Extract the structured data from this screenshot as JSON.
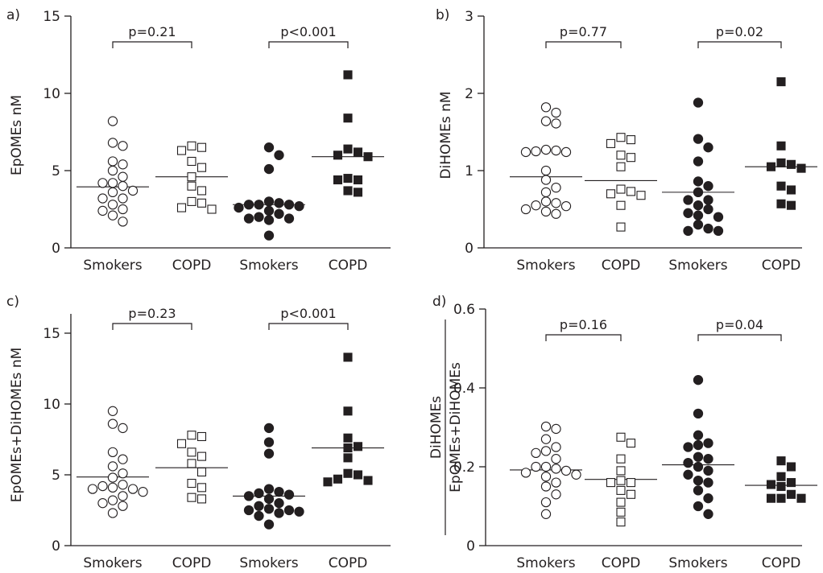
{
  "chart_data": [
    {
      "panel": "a)",
      "type": "scatter",
      "ylabel": "EpOMEs nM",
      "ylim": [
        0,
        15
      ],
      "yticks": [
        0,
        5,
        10,
        15
      ],
      "categories": [
        "Smokers",
        "COPD",
        "Smokers",
        "COPD"
      ],
      "comparisons": [
        {
          "groups": [
            0,
            1
          ],
          "label": "p=0.21"
        },
        {
          "groups": [
            2,
            3
          ],
          "label": "p<0.001"
        }
      ],
      "groups": [
        {
          "marker": "open-circle",
          "median": 3.95,
          "values": [
            8.2,
            6.8,
            6.6,
            5.6,
            5.4,
            5.0,
            4.6,
            4.2,
            4.2,
            4.0,
            3.7,
            3.6,
            3.2,
            3.2,
            2.8,
            2.5,
            2.4,
            2.1,
            1.7
          ]
        },
        {
          "marker": "open-square",
          "median": 4.6,
          "values": [
            6.6,
            6.5,
            6.3,
            5.6,
            5.2,
            4.6,
            4.0,
            3.7,
            3.0,
            2.9,
            2.6,
            2.5
          ]
        },
        {
          "marker": "filled-circle",
          "median": 2.8,
          "values": [
            6.5,
            6.0,
            5.1,
            3.0,
            2.9,
            2.8,
            2.8,
            2.8,
            2.7,
            2.6,
            2.4,
            2.2,
            2.0,
            1.9,
            1.8,
            1.9,
            0.8
          ]
        },
        {
          "marker": "filled-square",
          "median": 5.9,
          "values": [
            11.2,
            8.4,
            6.4,
            6.2,
            6.0,
            5.9,
            4.5,
            4.4,
            4.4,
            3.7,
            3.6
          ]
        }
      ]
    },
    {
      "panel": "b)",
      "type": "scatter",
      "ylabel": "DiHOMEs nM",
      "ylim": [
        0,
        3
      ],
      "yticks": [
        0,
        1,
        2,
        3
      ],
      "categories": [
        "Smokers",
        "COPD",
        "Smokers",
        "COPD"
      ],
      "comparisons": [
        {
          "groups": [
            0,
            1
          ],
          "label": "p=0.77"
        },
        {
          "groups": [
            2,
            3
          ],
          "label": "p=0.02"
        }
      ],
      "groups": [
        {
          "marker": "open-circle",
          "median": 0.92,
          "values": [
            1.82,
            1.75,
            1.64,
            1.61,
            1.27,
            1.26,
            1.25,
            1.24,
            1.24,
            1.0,
            0.88,
            0.78,
            0.72,
            0.6,
            0.58,
            0.55,
            0.54,
            0.5,
            0.47,
            0.44
          ]
        },
        {
          "marker": "open-square",
          "median": 0.87,
          "values": [
            1.43,
            1.4,
            1.35,
            1.2,
            1.17,
            1.05,
            0.76,
            0.73,
            0.7,
            0.68,
            0.55,
            0.27
          ]
        },
        {
          "marker": "filled-circle",
          "median": 0.72,
          "values": [
            1.88,
            1.41,
            1.3,
            1.12,
            0.86,
            0.8,
            0.72,
            0.62,
            0.62,
            0.55,
            0.5,
            0.45,
            0.42,
            0.4,
            0.3,
            0.25,
            0.22,
            0.22
          ]
        },
        {
          "marker": "filled-square",
          "median": 1.05,
          "values": [
            2.15,
            1.32,
            1.1,
            1.08,
            1.05,
            1.03,
            0.8,
            0.75,
            0.57,
            0.55
          ]
        }
      ]
    },
    {
      "panel": "c)",
      "type": "scatter",
      "ylabel": "EpOMEs+DiHOMEs nM",
      "ylim": [
        0,
        17.5
      ],
      "yticks": [
        0,
        5,
        10,
        15
      ],
      "categories": [
        "Smokers",
        "COPD",
        "Smokers",
        "COPD"
      ],
      "comparisons": [
        {
          "groups": [
            0,
            1
          ],
          "label": "p=0.23"
        },
        {
          "groups": [
            2,
            3
          ],
          "label": "p<0.001"
        }
      ],
      "groups": [
        {
          "marker": "open-circle",
          "median": 4.85,
          "values": [
            9.5,
            8.6,
            8.3,
            6.6,
            6.1,
            5.6,
            5.1,
            4.8,
            4.3,
            4.2,
            4.1,
            4.0,
            4.0,
            3.8,
            3.5,
            3.2,
            3.0,
            2.8,
            2.3
          ]
        },
        {
          "marker": "open-square",
          "median": 5.5,
          "values": [
            7.8,
            7.7,
            7.2,
            6.6,
            6.3,
            5.8,
            5.2,
            4.4,
            4.1,
            3.4,
            3.3
          ]
        },
        {
          "marker": "filled-circle",
          "median": 3.5,
          "values": [
            8.3,
            7.3,
            6.5,
            4.0,
            3.8,
            3.7,
            3.6,
            3.5,
            3.3,
            3.0,
            2.8,
            2.6,
            2.5,
            2.5,
            2.4,
            2.3,
            2.1,
            1.5
          ]
        },
        {
          "marker": "filled-square",
          "median": 6.9,
          "values": [
            13.3,
            9.5,
            7.6,
            7.0,
            6.9,
            6.2,
            5.1,
            5.0,
            4.7,
            4.6,
            4.5
          ]
        }
      ]
    },
    {
      "panel": "d)",
      "type": "scatter",
      "ylabel_numerator": "DiHOMEs",
      "ylabel_denominator": "EpOMEs+DiHOMEs",
      "ylim": [
        0,
        0.6
      ],
      "yticks": [
        "0",
        "0.2",
        "0.4",
        "0.6"
      ],
      "categories": [
        "Smokers",
        "COPD",
        "Smokers",
        "COPD"
      ],
      "comparisons": [
        {
          "groups": [
            0,
            1
          ],
          "label": "p=0.16"
        },
        {
          "groups": [
            2,
            3
          ],
          "label": "p=0.04"
        }
      ],
      "groups": [
        {
          "marker": "open-circle",
          "median": 0.192,
          "values": [
            0.302,
            0.296,
            0.27,
            0.25,
            0.24,
            0.235,
            0.22,
            0.2,
            0.2,
            0.195,
            0.19,
            0.185,
            0.18,
            0.175,
            0.16,
            0.15,
            0.13,
            0.11,
            0.08
          ]
        },
        {
          "marker": "open-square",
          "median": 0.168,
          "values": [
            0.275,
            0.26,
            0.22,
            0.19,
            0.165,
            0.16,
            0.16,
            0.14,
            0.13,
            0.11,
            0.085,
            0.06
          ]
        },
        {
          "marker": "filled-circle",
          "median": 0.205,
          "values": [
            0.42,
            0.335,
            0.28,
            0.26,
            0.255,
            0.25,
            0.225,
            0.22,
            0.21,
            0.2,
            0.19,
            0.18,
            0.165,
            0.16,
            0.14,
            0.12,
            0.1,
            0.08
          ]
        },
        {
          "marker": "filled-square",
          "median": 0.153,
          "values": [
            0.215,
            0.2,
            0.175,
            0.16,
            0.155,
            0.15,
            0.13,
            0.12,
            0.12,
            0.12
          ]
        }
      ]
    }
  ]
}
